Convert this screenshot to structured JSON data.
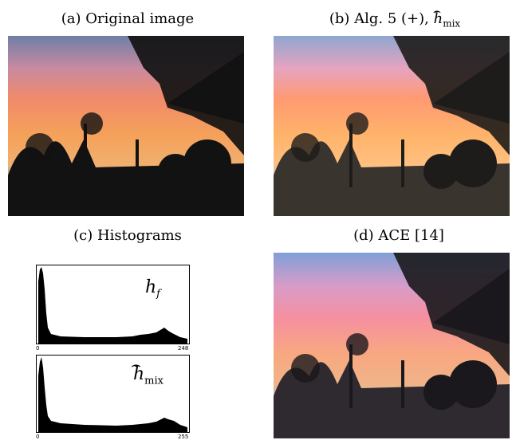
{
  "captions": {
    "a": "(a) Original image",
    "b_prefix": "(b) Alg. 5 (+), ",
    "b_symbol": "h",
    "b_sub": "mix",
    "c": "(c) Histograms",
    "d": "(d) ACE [14]"
  },
  "histograms": [
    {
      "label_main": "h",
      "label_sub": "f",
      "hat": false,
      "tick_min": "0",
      "tick_max": "248"
    },
    {
      "label_main": "h",
      "label_sub": "mix",
      "hat": true,
      "tick_min": "0",
      "tick_max": "255"
    }
  ],
  "images": {
    "a": "sunset-original",
    "b": "sunset-alg5",
    "d": "sunset-ace"
  }
}
